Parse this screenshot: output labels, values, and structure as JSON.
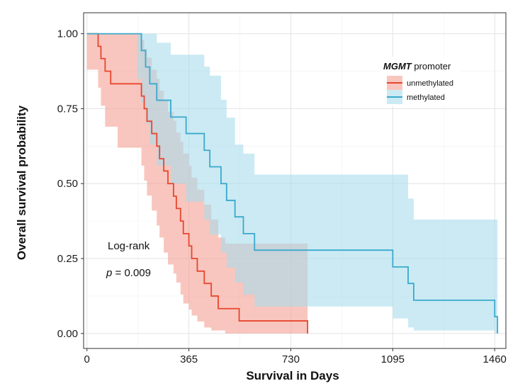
{
  "chart_data": {
    "type": "survival-step",
    "xlabel": "Survival in Days",
    "ylabel": "Overall survival probability",
    "xlim": [
      -12,
      1500
    ],
    "ylim": [
      -0.05,
      1.07
    ],
    "xticks": [
      0,
      365,
      730,
      1095,
      1460
    ],
    "yticks": [
      0.0,
      0.25,
      0.5,
      0.75,
      1.0
    ],
    "ytick_labels": [
      "0.00",
      "0.25",
      "0.50",
      "0.75",
      "1.00"
    ],
    "grid": true,
    "legend": {
      "title_italic": "MGMT",
      "title_rest": " promoter",
      "placement": "top-right",
      "items": [
        "unmethylated",
        "methylated"
      ]
    },
    "annotations": {
      "test": "Log-rank",
      "p_symbol": "p",
      "p_rest": " = 0.009"
    },
    "series": [
      {
        "name": "unmethylated",
        "color": "#e8462e",
        "fill": "#f4a093",
        "x": [
          0,
          40,
          50,
          65,
          85,
          110,
          195,
          205,
          215,
          232,
          250,
          260,
          275,
          290,
          310,
          320,
          335,
          345,
          365,
          375,
          395,
          420,
          445,
          470,
          480,
          495,
          545,
          570,
          790
        ],
        "y": [
          1.0,
          0.958,
          0.917,
          0.875,
          0.833,
          0.833,
          0.792,
          0.75,
          0.708,
          0.667,
          0.625,
          0.583,
          0.542,
          0.5,
          0.458,
          0.417,
          0.375,
          0.333,
          0.292,
          0.25,
          0.208,
          0.167,
          0.125,
          0.083,
          0.083,
          0.083,
          0.042,
          0.042,
          0.0
        ],
        "lower": [
          1.0,
          0.88,
          0.82,
          0.76,
          0.69,
          0.69,
          0.62,
          0.56,
          0.51,
          0.46,
          0.41,
          0.36,
          0.32,
          0.27,
          0.23,
          0.2,
          0.17,
          0.13,
          0.1,
          0.08,
          0.06,
          0.04,
          0.02,
          0.01,
          0.01,
          0.01,
          0.0,
          0.0,
          0.0
        ],
        "upper": [
          1.0,
          1.0,
          1.0,
          1.0,
          1.0,
          1.0,
          0.98,
          0.95,
          0.92,
          0.88,
          0.85,
          0.81,
          0.78,
          0.74,
          0.71,
          0.67,
          0.64,
          0.6,
          0.56,
          0.52,
          0.48,
          0.43,
          0.38,
          0.32,
          0.32,
          0.3,
          0.3,
          0.3,
          0.3
        ]
      },
      {
        "name": "methylated",
        "color": "#3aa9cc",
        "fill": "#a9dcec",
        "x": [
          0,
          180,
          195,
          210,
          225,
          250,
          300,
          355,
          420,
          440,
          480,
          500,
          530,
          560,
          600,
          1095,
          1150,
          1170,
          1460,
          1470
        ],
        "y": [
          1.0,
          1.0,
          0.944,
          0.889,
          0.833,
          0.778,
          0.722,
          0.667,
          0.611,
          0.556,
          0.5,
          0.444,
          0.389,
          0.333,
          0.278,
          0.222,
          0.167,
          0.111,
          0.056,
          0.0
        ],
        "lower": [
          1.0,
          1.0,
          0.85,
          0.77,
          0.7,
          0.63,
          0.56,
          0.5,
          0.44,
          0.38,
          0.33,
          0.27,
          0.22,
          0.17,
          0.13,
          0.09,
          0.05,
          0.02,
          0.01,
          0.0
        ],
        "upper": [
          1.0,
          1.0,
          1.0,
          1.0,
          1.0,
          0.97,
          0.93,
          0.93,
          0.89,
          0.86,
          0.78,
          0.72,
          0.63,
          0.6,
          0.53,
          0.53,
          0.45,
          0.38,
          0.38,
          0.38
        ]
      }
    ]
  }
}
